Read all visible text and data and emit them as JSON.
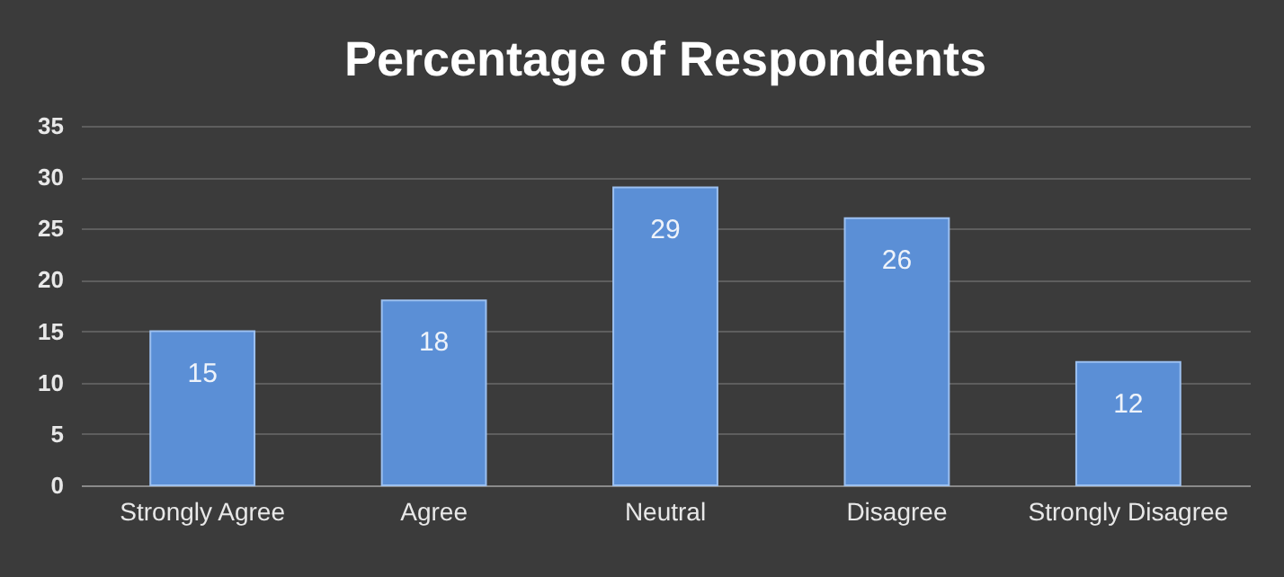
{
  "chart_data": {
    "type": "bar",
    "title": "Percentage of Respondents",
    "categories": [
      "Strongly Agree",
      "Agree",
      "Neutral",
      "Disagree",
      "Strongly Disagree"
    ],
    "values": [
      15,
      18,
      29,
      26,
      12
    ],
    "color": "#5b8fd6",
    "ylim": [
      0,
      35
    ],
    "yticks": [
      0,
      5,
      10,
      15,
      20,
      25,
      30,
      35
    ],
    "grid": "y",
    "data_labels": true
  }
}
